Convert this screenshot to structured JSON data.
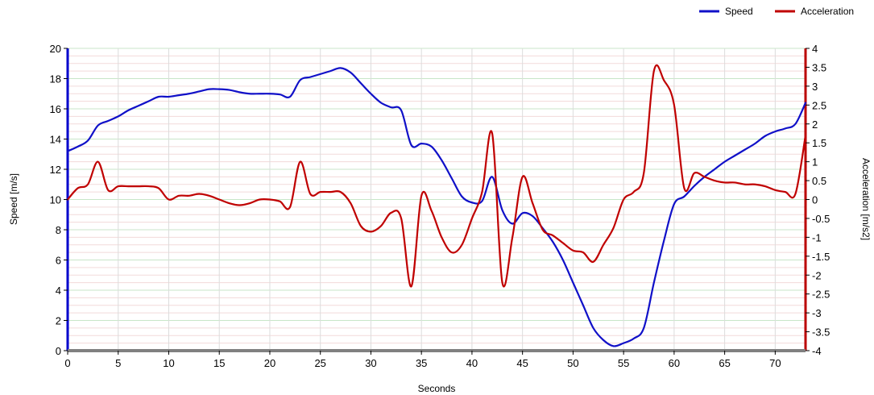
{
  "chart_data": {
    "type": "line",
    "xlabel": "Seconds",
    "ylabel_left": "Speed [m/s]",
    "ylabel_right": "Acceleration [m/s2]",
    "xlim": [
      0,
      73
    ],
    "ylim_left": [
      0,
      20
    ],
    "ylim_right": [
      -4,
      4
    ],
    "x_ticks": [
      0,
      5,
      10,
      15,
      20,
      25,
      30,
      35,
      40,
      45,
      50,
      55,
      60,
      65,
      70
    ],
    "y_left_ticks": [
      0,
      2,
      4,
      6,
      8,
      10,
      12,
      14,
      16,
      18,
      20
    ],
    "y_right_ticks": [
      -4,
      -3.5,
      -3,
      -2.5,
      -2,
      -1.5,
      -1,
      -0.5,
      0,
      0.5,
      1,
      1.5,
      2,
      2.5,
      3,
      3.5,
      4
    ],
    "x_tick_labels": [
      "0",
      "5",
      "10",
      "15",
      "20",
      "25",
      "30",
      "35",
      "40",
      "45",
      "50",
      "55",
      "60",
      "65",
      "70"
    ],
    "y_left_tick_labels": [
      "0",
      "2",
      "4",
      "6",
      "8",
      "10",
      "12",
      "14",
      "16",
      "18",
      "20"
    ],
    "y_right_tick_labels": [
      "-4",
      "-3.5",
      "-3",
      "-2.5",
      "-2",
      "-1.5",
      "-1",
      "-0.5",
      "0",
      "0.5",
      "1",
      "1.5",
      "2",
      "2.5",
      "3",
      "3.5",
      "4"
    ],
    "grid": true,
    "legend_position": "top-right",
    "series": [
      {
        "name": "Speed",
        "axis": "left",
        "color": "#1010c8",
        "points": [
          [
            0,
            13.2
          ],
          [
            1,
            13.5
          ],
          [
            2,
            13.9
          ],
          [
            3,
            14.9
          ],
          [
            4,
            15.2
          ],
          [
            5,
            15.5
          ],
          [
            6,
            15.9
          ],
          [
            7,
            16.2
          ],
          [
            8,
            16.5
          ],
          [
            9,
            16.8
          ],
          [
            10,
            16.8
          ],
          [
            11,
            16.9
          ],
          [
            12,
            17.0
          ],
          [
            13,
            17.15
          ],
          [
            14,
            17.3
          ],
          [
            15,
            17.3
          ],
          [
            16,
            17.25
          ],
          [
            17,
            17.1
          ],
          [
            18,
            17.0
          ],
          [
            19,
            17.0
          ],
          [
            20,
            17.0
          ],
          [
            21,
            16.95
          ],
          [
            22,
            16.8
          ],
          [
            23,
            17.9
          ],
          [
            24,
            18.1
          ],
          [
            25,
            18.3
          ],
          [
            26,
            18.5
          ],
          [
            27,
            18.7
          ],
          [
            28,
            18.4
          ],
          [
            29,
            17.7
          ],
          [
            30,
            17.0
          ],
          [
            31,
            16.4
          ],
          [
            32,
            16.1
          ],
          [
            33,
            15.9
          ],
          [
            34,
            13.6
          ],
          [
            35,
            13.7
          ],
          [
            36,
            13.5
          ],
          [
            37,
            12.6
          ],
          [
            38,
            11.4
          ],
          [
            39,
            10.2
          ],
          [
            40,
            9.8
          ],
          [
            41,
            9.9
          ],
          [
            42,
            11.5
          ],
          [
            43,
            9.3
          ],
          [
            44,
            8.4
          ],
          [
            45,
            9.1
          ],
          [
            46,
            8.9
          ],
          [
            47,
            8.1
          ],
          [
            48,
            7.2
          ],
          [
            49,
            6.0
          ],
          [
            50,
            4.5
          ],
          [
            51,
            3.0
          ],
          [
            52,
            1.5
          ],
          [
            53,
            0.7
          ],
          [
            54,
            0.3
          ],
          [
            55,
            0.5
          ],
          [
            56,
            0.8
          ],
          [
            57,
            1.5
          ],
          [
            58,
            4.5
          ],
          [
            59,
            7.3
          ],
          [
            60,
            9.7
          ],
          [
            61,
            10.2
          ],
          [
            62,
            10.9
          ],
          [
            63,
            11.5
          ],
          [
            64,
            12.0
          ],
          [
            65,
            12.5
          ],
          [
            66,
            12.9
          ],
          [
            67,
            13.3
          ],
          [
            68,
            13.7
          ],
          [
            69,
            14.2
          ],
          [
            70,
            14.5
          ],
          [
            71,
            14.7
          ],
          [
            72,
            15.0
          ],
          [
            73,
            16.4
          ]
        ]
      },
      {
        "name": "Acceleration",
        "axis": "right",
        "color": "#c00000",
        "points": [
          [
            0,
            0.0
          ],
          [
            1,
            0.3
          ],
          [
            2,
            0.4
          ],
          [
            3,
            1.0
          ],
          [
            4,
            0.25
          ],
          [
            5,
            0.35
          ],
          [
            6,
            0.35
          ],
          [
            7,
            0.35
          ],
          [
            8,
            0.35
          ],
          [
            9,
            0.3
          ],
          [
            10,
            0.0
          ],
          [
            11,
            0.1
          ],
          [
            12,
            0.1
          ],
          [
            13,
            0.15
          ],
          [
            14,
            0.1
          ],
          [
            15,
            0.0
          ],
          [
            16,
            -0.1
          ],
          [
            17,
            -0.15
          ],
          [
            18,
            -0.1
          ],
          [
            19,
            0.0
          ],
          [
            20,
            0.0
          ],
          [
            21,
            -0.05
          ],
          [
            22,
            -0.2
          ],
          [
            23,
            1.0
          ],
          [
            24,
            0.15
          ],
          [
            25,
            0.2
          ],
          [
            26,
            0.2
          ],
          [
            27,
            0.2
          ],
          [
            28,
            -0.1
          ],
          [
            29,
            -0.7
          ],
          [
            30,
            -0.85
          ],
          [
            31,
            -0.7
          ],
          [
            32,
            -0.35
          ],
          [
            33,
            -0.5
          ],
          [
            34,
            -2.3
          ],
          [
            35,
            0.1
          ],
          [
            36,
            -0.3
          ],
          [
            37,
            -1.0
          ],
          [
            38,
            -1.4
          ],
          [
            39,
            -1.2
          ],
          [
            40,
            -0.5
          ],
          [
            41,
            0.2
          ],
          [
            42,
            1.75
          ],
          [
            43,
            -2.2
          ],
          [
            44,
            -1.0
          ],
          [
            45,
            0.6
          ],
          [
            46,
            -0.1
          ],
          [
            47,
            -0.8
          ],
          [
            48,
            -0.95
          ],
          [
            49,
            -1.15
          ],
          [
            50,
            -1.35
          ],
          [
            51,
            -1.4
          ],
          [
            52,
            -1.65
          ],
          [
            53,
            -1.2
          ],
          [
            54,
            -0.75
          ],
          [
            55,
            0.0
          ],
          [
            56,
            0.2
          ],
          [
            57,
            0.7
          ],
          [
            58,
            3.4
          ],
          [
            59,
            3.15
          ],
          [
            60,
            2.5
          ],
          [
            61,
            0.3
          ],
          [
            62,
            0.7
          ],
          [
            63,
            0.6
          ],
          [
            64,
            0.5
          ],
          [
            65,
            0.45
          ],
          [
            66,
            0.45
          ],
          [
            67,
            0.4
          ],
          [
            68,
            0.4
          ],
          [
            69,
            0.35
          ],
          [
            70,
            0.25
          ],
          [
            71,
            0.2
          ],
          [
            72,
            0.15
          ],
          [
            73,
            1.7
          ]
        ]
      }
    ]
  }
}
